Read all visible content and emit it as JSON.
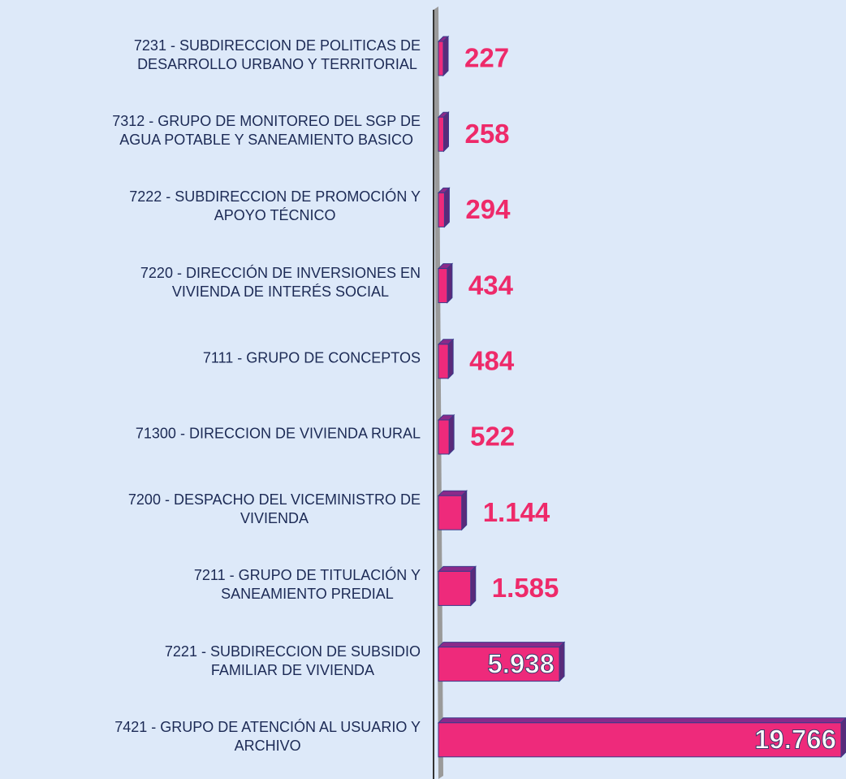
{
  "chart_data": {
    "type": "bar",
    "orientation": "horizontal",
    "categories": [
      "7231 - SUBDIRECCION DE POLITICAS DE\nDESARROLLO  URBANO Y TERRITORIAL",
      "7312 - GRUPO DE MONITOREO DEL SGP DE\nAGUA POTABLE Y SANEAMIENTO BASICO",
      "7222 - SUBDIRECCION DE PROMOCIÓN Y\nAPOYO TÉCNICO",
      "7220 - DIRECCIÓN DE INVERSIONES EN\nVIVIENDA DE INTERÉS SOCIAL",
      "7111 - GRUPO DE CONCEPTOS",
      "71300 - DIRECCION DE VIVIENDA RURAL",
      "7200 - DESPACHO DEL VICEMINISTRO DE\nVIVIENDA",
      "7211 - GRUPO DE TITULACIÓN Y\nSANEAMIENTO PREDIAL",
      "7221 - SUBDIRECCION DE SUBSIDIO\nFAMILIAR DE VIVIENDA",
      "7421 - GRUPO DE ATENCIÓN AL USUARIO Y\nARCHIVO"
    ],
    "values": [
      227,
      258,
      294,
      434,
      484,
      522,
      1144,
      1585,
      5938,
      19766
    ],
    "value_labels": [
      "227",
      "258",
      "294",
      "434",
      "484",
      "522",
      "1.144",
      "1.585",
      "5.938",
      "19.766"
    ],
    "color": "#ee2a7b"
  }
}
